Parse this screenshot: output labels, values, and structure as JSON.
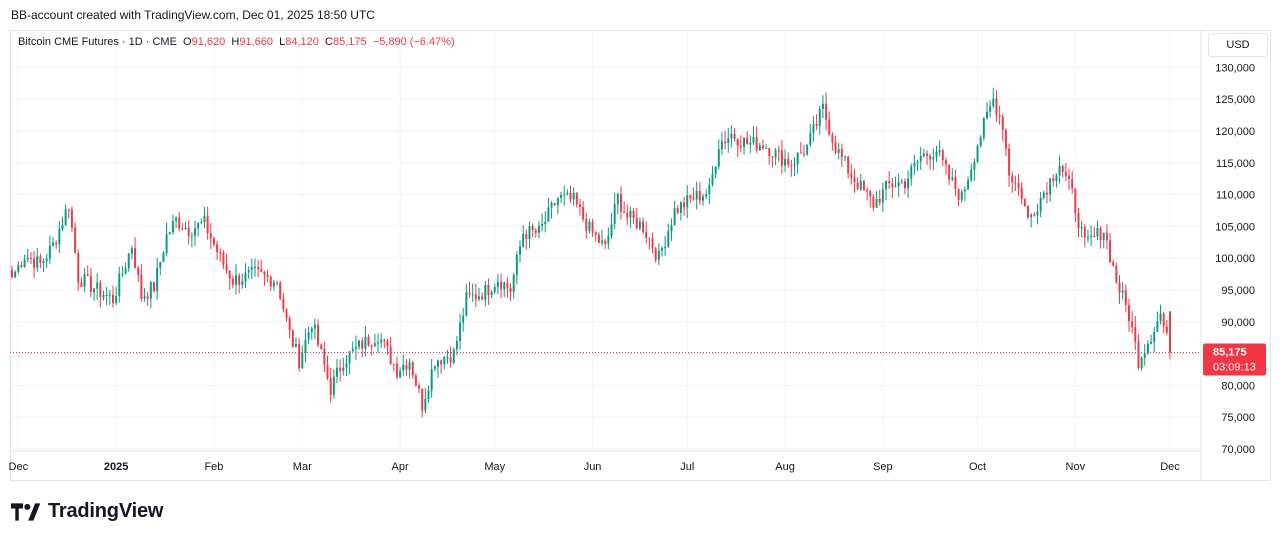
{
  "header": {
    "attribution": "BB-account created with TradingView.com, Dec 01, 2025 18:50 UTC"
  },
  "legend": {
    "symbol": "Bitcoin CME Futures · 1D · CME",
    "open_label": "O",
    "open": "91,620",
    "high_label": "H",
    "high": "91,660",
    "low_label": "L",
    "low": "84,120",
    "close_label": "C",
    "close": "85,175",
    "change": "−5,890 (−6.47%)"
  },
  "currency_button": "USD",
  "last_price": {
    "price": "85,175",
    "countdown": "03:09:13"
  },
  "logo": {
    "text": "TradingView"
  },
  "colors": {
    "up": "#089981",
    "down": "#f23645",
    "grid": "#f0f3fa",
    "text": "#131722"
  },
  "chart_data": {
    "type": "candlestick",
    "ylim": [
      70000,
      131000
    ],
    "y_ticks": [
      "70,000",
      "75,000",
      "80,000",
      "85,000",
      "90,000",
      "95,000",
      "100,000",
      "105,000",
      "110,000",
      "115,000",
      "120,000",
      "125,000",
      "130,000"
    ],
    "y_tick_values": [
      70000,
      75000,
      80000,
      85000,
      90000,
      95000,
      100000,
      105000,
      110000,
      115000,
      120000,
      125000,
      130000
    ],
    "x_ticks": [
      "Dec",
      "2025",
      "Feb",
      "Mar",
      "Apr",
      "May",
      "Jun",
      "Jul",
      "Aug",
      "Sep",
      "Oct",
      "Nov",
      "Dec"
    ],
    "x_tick_dates": [
      "2024-12-01",
      "2025-01-01",
      "2025-02-01",
      "2025-03-01",
      "2025-04-01",
      "2025-05-01",
      "2025-06-01",
      "2025-07-01",
      "2025-08-01",
      "2025-09-01",
      "2025-10-01",
      "2025-11-01",
      "2025-12-01"
    ],
    "start_date": "2024-11-29",
    "end_date": "2025-12-01",
    "last_price": 85175,
    "series": [
      {
        "name": "Bitcoin CME Futures",
        "close_path": [
          [
            "2024-11-29",
            97000
          ],
          [
            "2024-12-03",
            100500
          ],
          [
            "2024-12-08",
            99000
          ],
          [
            "2024-12-12",
            102000
          ],
          [
            "2024-12-17",
            108500
          ],
          [
            "2024-12-20",
            97000
          ],
          [
            "2024-12-26",
            95000
          ],
          [
            "2024-12-31",
            93500
          ],
          [
            "2025-01-06",
            102000
          ],
          [
            "2025-01-09",
            94000
          ],
          [
            "2025-01-13",
            95500
          ],
          [
            "2025-01-17",
            103500
          ],
          [
            "2025-01-20",
            106000
          ],
          [
            "2025-01-24",
            104500
          ],
          [
            "2025-01-29",
            105500
          ],
          [
            "2025-02-03",
            100000
          ],
          [
            "2025-02-07",
            96500
          ],
          [
            "2025-02-14",
            97500
          ],
          [
            "2025-02-21",
            96500
          ],
          [
            "2025-02-25",
            88000
          ],
          [
            "2025-02-28",
            84000
          ],
          [
            "2025-03-04",
            90000
          ],
          [
            "2025-03-10",
            79500
          ],
          [
            "2025-03-14",
            84000
          ],
          [
            "2025-03-20",
            86500
          ],
          [
            "2025-03-25",
            88000
          ],
          [
            "2025-03-31",
            82500
          ],
          [
            "2025-04-04",
            84000
          ],
          [
            "2025-04-08",
            77000
          ],
          [
            "2025-04-12",
            84000
          ],
          [
            "2025-04-18",
            85000
          ],
          [
            "2025-04-22",
            93500
          ],
          [
            "2025-04-28",
            94800
          ],
          [
            "2025-05-02",
            96800
          ],
          [
            "2025-05-06",
            95000
          ],
          [
            "2025-05-10",
            104000
          ],
          [
            "2025-05-15",
            104000
          ],
          [
            "2025-05-21",
            109500
          ],
          [
            "2025-05-26",
            109000
          ],
          [
            "2025-05-31",
            104500
          ],
          [
            "2025-06-05",
            101500
          ],
          [
            "2025-06-09",
            109500
          ],
          [
            "2025-06-12",
            106500
          ],
          [
            "2025-06-17",
            105000
          ],
          [
            "2025-06-22",
            100000
          ],
          [
            "2025-06-27",
            107500
          ],
          [
            "2025-07-03",
            109500
          ],
          [
            "2025-07-08",
            110500
          ],
          [
            "2025-07-11",
            118000
          ],
          [
            "2025-07-15",
            119500
          ],
          [
            "2025-07-20",
            118000
          ],
          [
            "2025-07-25",
            118000
          ],
          [
            "2025-07-30",
            116000
          ],
          [
            "2025-08-03",
            115000
          ],
          [
            "2025-08-08",
            117500
          ],
          [
            "2025-08-13",
            123500
          ],
          [
            "2025-08-17",
            117500
          ],
          [
            "2025-08-22",
            113000
          ],
          [
            "2025-08-29",
            108500
          ],
          [
            "2025-09-03",
            111500
          ],
          [
            "2025-09-08",
            112000
          ],
          [
            "2025-09-13",
            116000
          ],
          [
            "2025-09-18",
            117000
          ],
          [
            "2025-09-22",
            112500
          ],
          [
            "2025-09-26",
            109500
          ],
          [
            "2025-10-01",
            118000
          ],
          [
            "2025-10-06",
            125000
          ],
          [
            "2025-10-09",
            121000
          ],
          [
            "2025-10-11",
            113500
          ],
          [
            "2025-10-15",
            110000
          ],
          [
            "2025-10-17",
            106000
          ],
          [
            "2025-10-21",
            109500
          ],
          [
            "2025-10-27",
            115000
          ],
          [
            "2025-10-31",
            110000
          ],
          [
            "2025-11-04",
            102000
          ],
          [
            "2025-11-10",
            104500
          ],
          [
            "2025-11-14",
            96500
          ],
          [
            "2025-11-18",
            91000
          ],
          [
            "2025-11-21",
            84000
          ],
          [
            "2025-11-25",
            88000
          ],
          [
            "2025-11-28",
            91200
          ],
          [
            "2025-12-01",
            85175
          ]
        ]
      }
    ]
  }
}
